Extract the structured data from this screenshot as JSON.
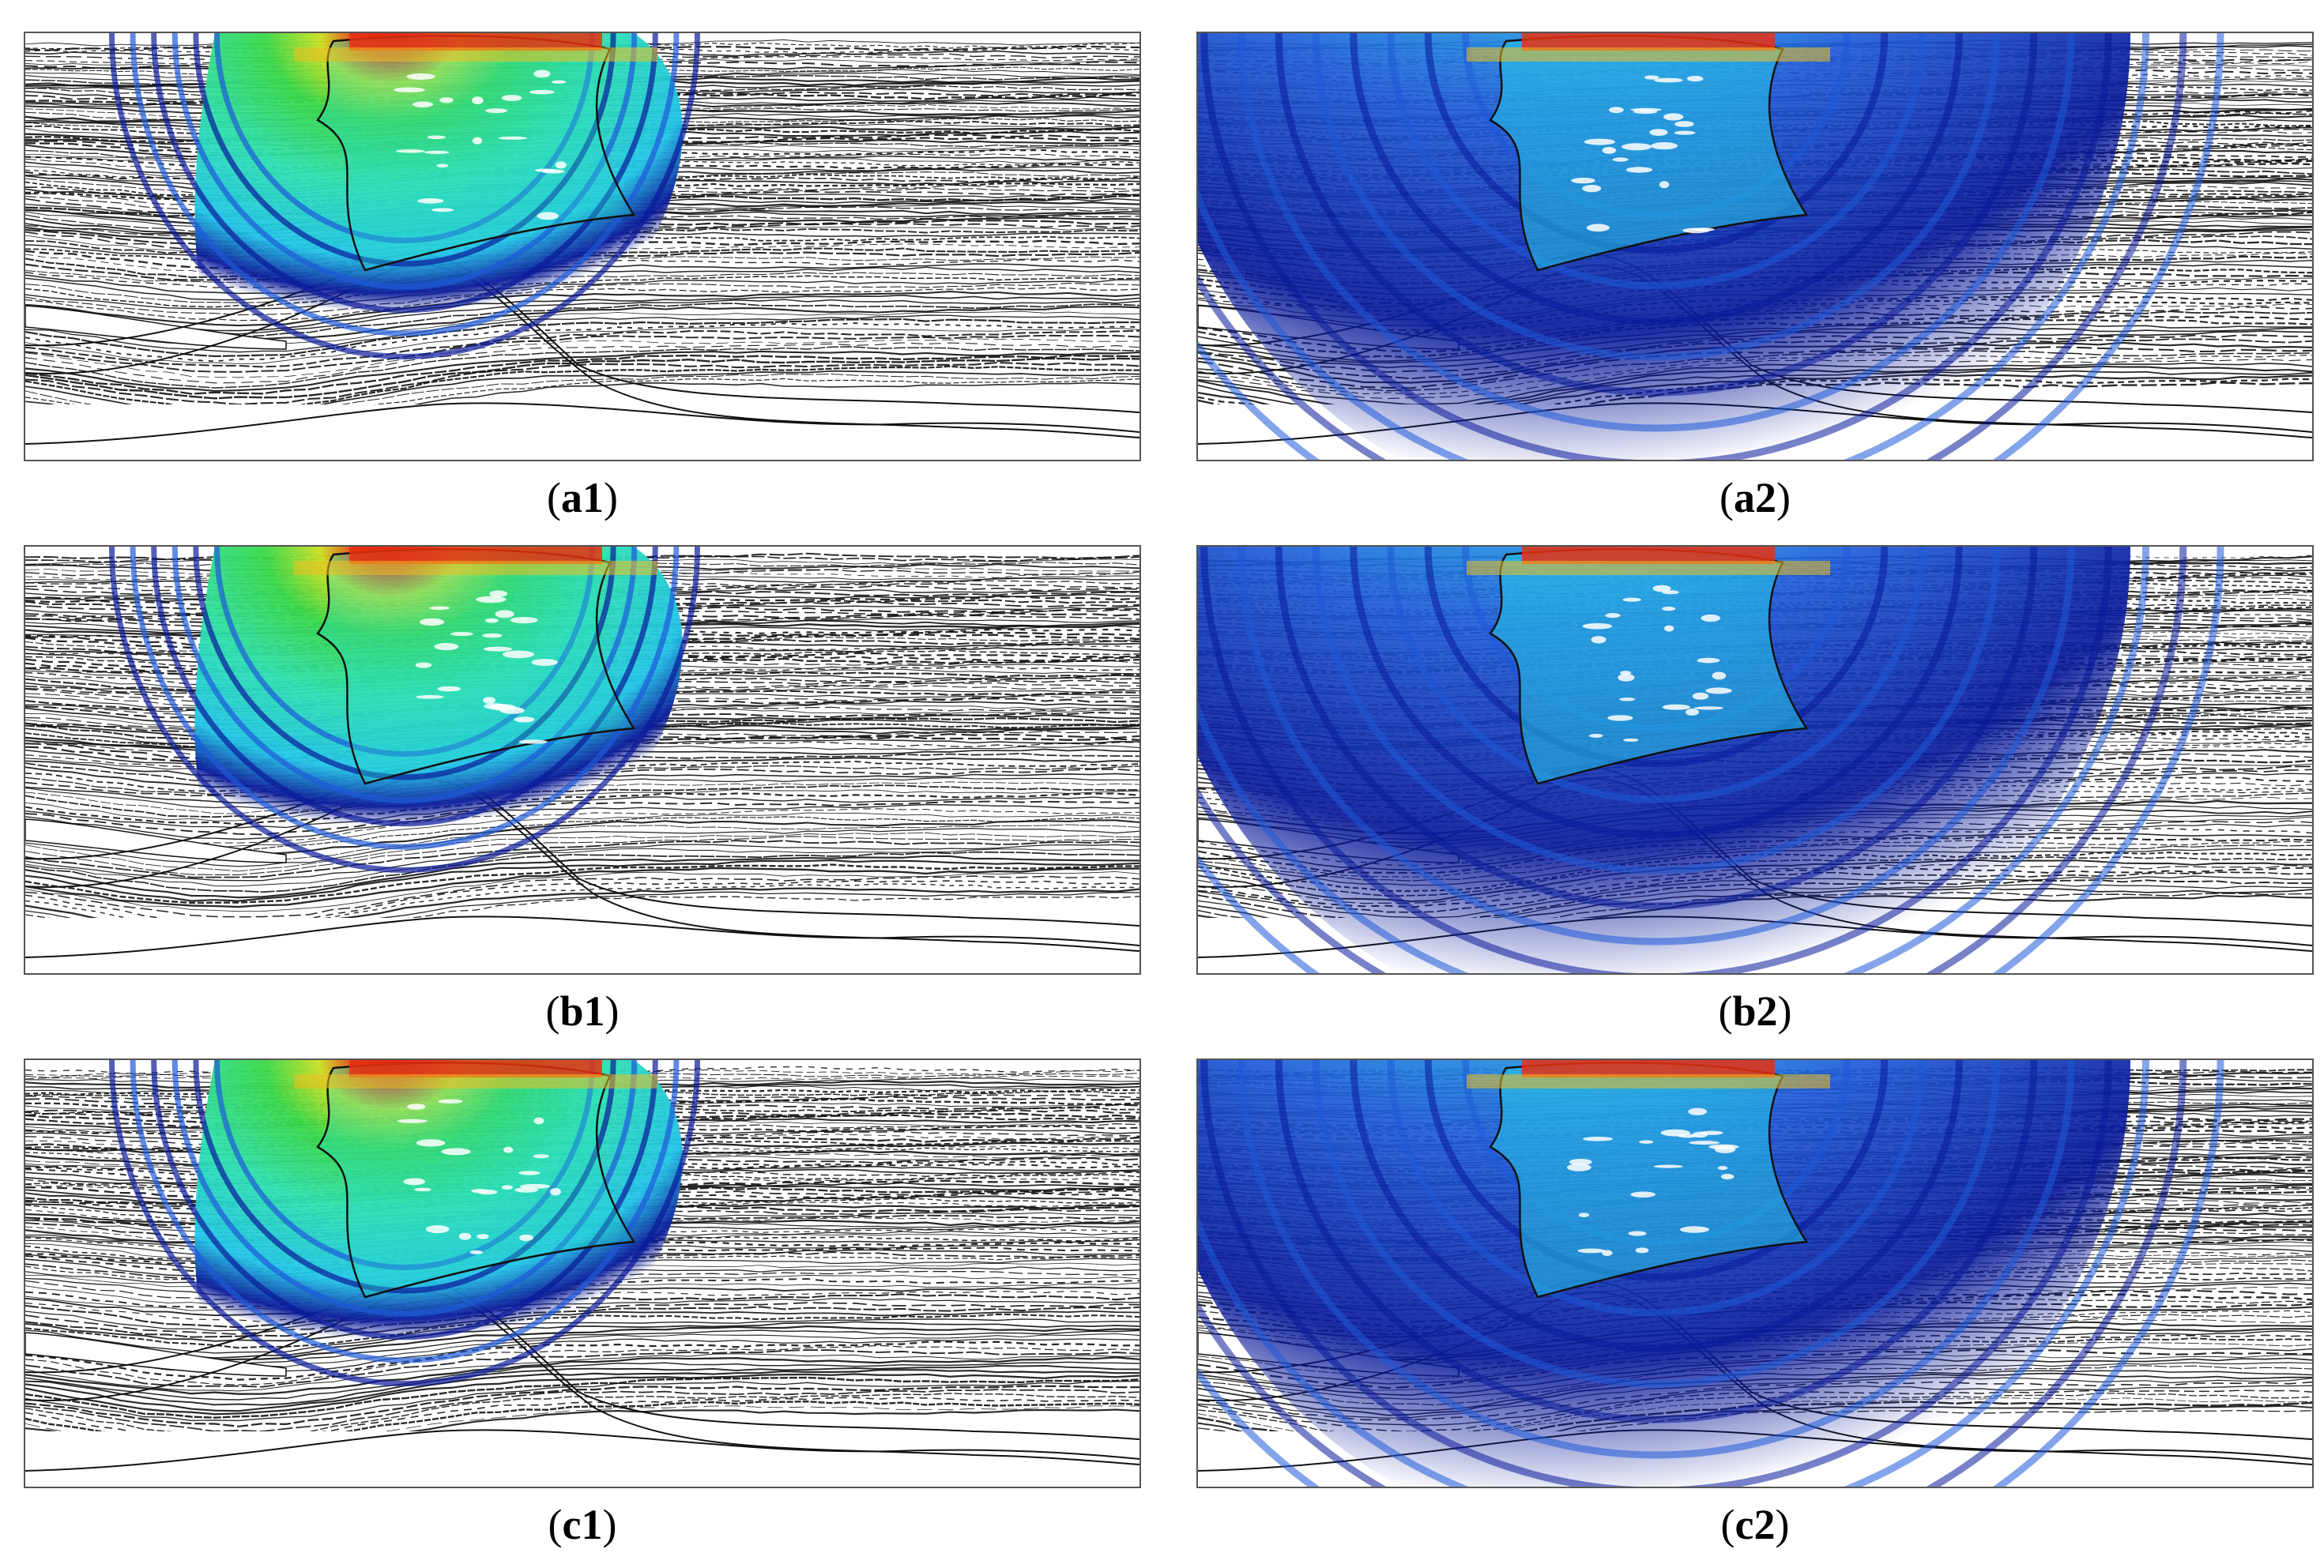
{
  "figure": {
    "panels": [
      {
        "id": "a1",
        "label": "a1",
        "wavefield": "narrow"
      },
      {
        "id": "a2",
        "label": "a2",
        "wavefield": "wide"
      },
      {
        "id": "b1",
        "label": "b1",
        "wavefield": "narrow"
      },
      {
        "id": "b2",
        "label": "b2",
        "wavefield": "wide"
      },
      {
        "id": "c1",
        "label": "c1",
        "wavefield": "narrow"
      },
      {
        "id": "c2",
        "label": "c2",
        "wavefield": "wide"
      }
    ],
    "colormap": [
      "#0a1a9a",
      "#1e5ad8",
      "#22c4e8",
      "#2ee0b0",
      "#38d848",
      "#c8e020",
      "#f0c020",
      "#e83010",
      "#c00000"
    ],
    "layer_color": "#111111"
  }
}
